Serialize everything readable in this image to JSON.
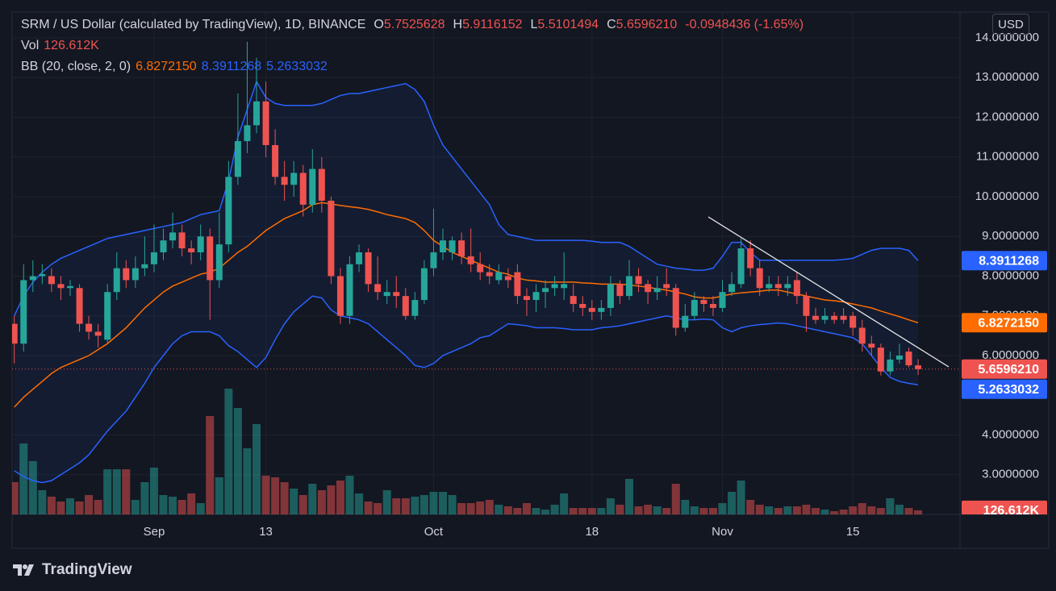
{
  "chart_data": {
    "type": "candlestick",
    "title": "SRM / US Dollar (calculated by TradingView), 1D, BINANCE",
    "currency": "USD",
    "brand": "TradingView",
    "keys": {
      "open": "O",
      "high": "H",
      "low": "L",
      "close": "C"
    },
    "last_labels": {
      "open": "5.7525628",
      "high": "5.9116152",
      "low": "5.5101494",
      "close": "5.6596210"
    },
    "change": -0.0948436,
    "change_label": "-0.0948436 (-1.65%)",
    "up_color": "#26a69a",
    "down_color": "#ef5350",
    "grid": true,
    "ylim": [
      2,
      14.65
    ],
    "yticks": [
      {
        "value": 3,
        "label": "3.0000000"
      },
      {
        "value": 4,
        "label": "4.0000000"
      },
      {
        "value": 6,
        "label": "6.0000000"
      },
      {
        "value": 7,
        "label": "7.0000000"
      },
      {
        "value": 8,
        "label": "8.0000000"
      },
      {
        "value": 9,
        "label": "9.0000000"
      },
      {
        "value": 10,
        "label": "10.0000000"
      },
      {
        "value": 11,
        "label": "11.0000000"
      },
      {
        "value": 12,
        "label": "12.0000000"
      },
      {
        "value": 13,
        "label": "13.0000000"
      },
      {
        "value": 14,
        "label": "14.0000000"
      }
    ],
    "categories": [
      null,
      null,
      null,
      null,
      null,
      null,
      null,
      null,
      null,
      null,
      null,
      null,
      null,
      null,
      null,
      "Sep",
      null,
      null,
      null,
      null,
      null,
      null,
      null,
      null,
      null,
      null,
      null,
      "13",
      null,
      null,
      null,
      null,
      null,
      null,
      null,
      null,
      null,
      null,
      null,
      null,
      null,
      null,
      null,
      null,
      null,
      "Oct",
      null,
      null,
      null,
      null,
      null,
      null,
      null,
      null,
      null,
      null,
      null,
      null,
      null,
      null,
      null,
      null,
      "18",
      null,
      null,
      null,
      null,
      null,
      null,
      null,
      null,
      null,
      null,
      null,
      null,
      null,
      "Nov",
      null,
      null,
      null,
      null,
      null,
      null,
      null,
      null,
      null,
      null,
      null,
      null,
      null,
      "15",
      null,
      null,
      null,
      null,
      null,
      null,
      null
    ],
    "open": [
      6.8,
      6.3,
      7.9,
      8.0,
      8.0,
      7.8,
      7.7,
      7.7,
      6.8,
      6.6,
      6.4,
      7.6,
      8.2,
      7.9,
      8.2,
      8.3,
      8.6,
      8.9,
      9.1,
      8.7,
      8.6,
      9.0,
      7.9,
      8.8,
      10.5,
      11.4,
      11.8,
      12.4,
      11.3,
      10.5,
      10.3,
      10.6,
      9.8,
      10.7,
      9.9,
      8.0,
      7.0,
      8.3,
      8.6,
      7.8,
      7.5,
      7.6,
      7.5,
      7.0,
      7.4,
      8.2,
      8.6,
      8.6,
      8.9,
      8.5,
      8.3,
      8.1,
      7.9,
      8.0,
      8.1,
      7.5,
      7.4,
      7.6,
      7.7,
      7.7,
      7.5,
      7.3,
      7.2,
      7.1,
      7.2,
      7.8,
      7.5,
      8.0,
      7.8,
      7.6,
      7.8,
      7.7,
      6.7,
      7.0,
      7.4,
      7.3,
      7.2,
      7.6,
      7.8,
      8.7,
      8.2,
      7.7,
      7.8,
      7.7,
      7.9,
      7.5,
      7.0,
      6.9,
      7.0,
      7.0,
      7.0,
      6.7,
      6.3,
      6.2,
      5.6,
      5.9,
      6.1,
      5.7525628
    ],
    "high": [
      7.0,
      8.3,
      8.4,
      8.3,
      8.2,
      8.0,
      7.9,
      7.8,
      7.0,
      6.8,
      7.8,
      8.6,
      8.4,
      8.5,
      9.0,
      9.3,
      9.2,
      9.6,
      9.3,
      8.9,
      9.3,
      9.2,
      9.6,
      10.9,
      12.6,
      13.9,
      13.5,
      12.9,
      11.7,
      10.9,
      10.9,
      10.8,
      11.2,
      11.0,
      10.0,
      8.2,
      8.5,
      8.8,
      8.7,
      8.5,
      7.9,
      8.0,
      7.7,
      7.6,
      8.4,
      9.7,
      9.2,
      9.0,
      9.1,
      9.2,
      8.6,
      8.3,
      8.3,
      8.2,
      8.3,
      7.7,
      7.8,
      7.9,
      8.0,
      8.6,
      7.8,
      7.5,
      7.4,
      7.4,
      8.0,
      7.9,
      8.4,
      8.2,
      7.9,
      8.0,
      8.2,
      7.8,
      7.3,
      7.6,
      7.5,
      7.5,
      7.9,
      8.1,
      8.95,
      8.9,
      8.4,
      8.0,
      8.0,
      8.0,
      8.1,
      7.6,
      7.2,
      7.2,
      7.1,
      7.2,
      7.1,
      6.9,
      6.5,
      6.3,
      6.1,
      6.3,
      6.2,
      5.9116152
    ],
    "low": [
      5.8,
      6.1,
      7.6,
      7.8,
      7.6,
      7.4,
      7.5,
      6.6,
      6.4,
      6.2,
      6.3,
      7.4,
      7.7,
      7.7,
      8.0,
      8.1,
      8.4,
      8.7,
      8.5,
      8.3,
      8.4,
      6.9,
      7.7,
      8.6,
      10.3,
      11.1,
      11.6,
      11.0,
      10.3,
      9.9,
      10.0,
      9.5,
      9.6,
      9.6,
      7.8,
      6.8,
      6.8,
      8.1,
      7.6,
      7.4,
      7.3,
      7.2,
      6.9,
      6.9,
      7.3,
      8.0,
      8.4,
      8.4,
      8.3,
      8.1,
      7.9,
      7.8,
      7.8,
      7.7,
      7.3,
      7.0,
      7.1,
      7.2,
      7.5,
      7.4,
      7.1,
      7.0,
      6.9,
      6.9,
      7.0,
      7.3,
      7.4,
      7.6,
      7.3,
      7.4,
      7.5,
      6.5,
      6.6,
      6.9,
      7.1,
      7.0,
      7.1,
      7.5,
      7.7,
      8.0,
      7.5,
      7.6,
      7.5,
      7.5,
      7.3,
      6.6,
      6.8,
      6.8,
      6.8,
      6.8,
      6.5,
      6.1,
      6.0,
      5.5,
      5.5,
      5.8,
      5.7,
      5.5101494
    ],
    "close": [
      6.3,
      7.9,
      8.0,
      8.05,
      7.8,
      7.7,
      7.75,
      6.8,
      6.6,
      6.5,
      7.6,
      8.2,
      7.9,
      8.2,
      8.3,
      8.6,
      8.9,
      9.1,
      8.7,
      8.6,
      9.0,
      7.9,
      8.8,
      10.5,
      11.4,
      11.8,
      12.4,
      11.3,
      10.5,
      10.3,
      10.6,
      9.8,
      10.7,
      9.9,
      8.0,
      7.0,
      8.3,
      8.6,
      7.8,
      7.6,
      7.6,
      7.5,
      7.0,
      7.4,
      8.2,
      8.6,
      8.9,
      8.9,
      8.5,
      8.3,
      8.1,
      8.0,
      8.1,
      7.9,
      7.5,
      7.4,
      7.6,
      7.7,
      7.8,
      7.8,
      7.3,
      7.2,
      7.1,
      7.2,
      7.8,
      7.5,
      8.0,
      7.8,
      7.6,
      7.7,
      7.7,
      6.7,
      7.0,
      7.4,
      7.3,
      7.2,
      7.6,
      7.8,
      8.7,
      8.2,
      7.7,
      7.8,
      7.7,
      7.8,
      7.5,
      7.0,
      6.9,
      7.0,
      6.9,
      6.9,
      6.7,
      6.3,
      6.2,
      5.6,
      5.9,
      6.0,
      5.7544646,
      5.659621
    ],
    "volume": {
      "name": "Vol",
      "last_label": "126.612K",
      "up_color": "rgba(38,166,154,0.5)",
      "down_color": "rgba(239,83,80,0.5)",
      "label_color": "#ef5350",
      "vlim": [
        0,
        4000000
      ],
      "values": [
        1000000,
        2200000,
        1650000,
        750000,
        550000,
        400000,
        500000,
        400000,
        600000,
        450000,
        1400000,
        1400000,
        1400000,
        450000,
        1000000,
        1450000,
        600000,
        550000,
        450000,
        650000,
        350000,
        3050000,
        1150000,
        3900000,
        3300000,
        2050000,
        2800000,
        1200000,
        1150000,
        1000000,
        800000,
        600000,
        950000,
        750000,
        900000,
        1050000,
        1200000,
        650000,
        400000,
        350000,
        750000,
        500000,
        500000,
        550000,
        600000,
        700000,
        700000,
        600000,
        350000,
        350000,
        400000,
        450000,
        300000,
        250000,
        200000,
        350000,
        200000,
        150000,
        300000,
        650000,
        200000,
        200000,
        200000,
        200000,
        500000,
        300000,
        1100000,
        250000,
        300000,
        250000,
        200000,
        950000,
        450000,
        250000,
        200000,
        200000,
        350000,
        700000,
        1050000,
        450000,
        300000,
        250000,
        200000,
        250000,
        250000,
        300000,
        200000,
        150000,
        100000,
        150000,
        250000,
        350000,
        250000,
        200000,
        500000,
        300000,
        200000,
        126612
      ]
    },
    "bb": {
      "name": "BB (20, close, 2, 0)",
      "band_color": "#2962ff",
      "basis_color": "#ff6d00",
      "fill": "rgba(41,98,255,0.07)",
      "labels": {
        "basis": "6.8272150",
        "upper": "8.3911268",
        "lower": "5.2633032"
      },
      "upper": [
        7.0,
        7.5,
        7.85,
        8.1,
        8.3,
        8.45,
        8.55,
        8.65,
        8.75,
        8.85,
        8.95,
        9.0,
        9.05,
        9.1,
        9.15,
        9.2,
        9.25,
        9.3,
        9.35,
        9.45,
        9.55,
        9.6,
        9.65,
        10.4,
        11.5,
        12.2,
        12.9,
        12.5,
        12.35,
        12.3,
        12.3,
        12.3,
        12.3,
        12.35,
        12.45,
        12.55,
        12.6,
        12.6,
        12.65,
        12.7,
        12.75,
        12.8,
        12.85,
        12.7,
        12.4,
        11.8,
        11.3,
        11.0,
        10.7,
        10.4,
        10.1,
        9.8,
        9.3,
        9.05,
        9.0,
        8.95,
        8.9,
        8.9,
        8.9,
        8.9,
        8.9,
        8.9,
        8.88,
        8.85,
        8.85,
        8.85,
        8.75,
        8.6,
        8.45,
        8.3,
        8.25,
        8.2,
        8.18,
        8.15,
        8.15,
        8.2,
        8.5,
        8.85,
        8.85,
        8.6,
        8.4,
        8.4,
        8.4,
        8.4,
        8.4,
        8.4,
        8.4,
        8.4,
        8.4,
        8.42,
        8.45,
        8.55,
        8.65,
        8.7,
        8.7,
        8.7,
        8.65,
        8.3911268
      ],
      "basis": [
        4.7,
        4.95,
        5.15,
        5.35,
        5.55,
        5.7,
        5.8,
        5.9,
        6.0,
        6.15,
        6.3,
        6.5,
        6.7,
        6.95,
        7.2,
        7.4,
        7.6,
        7.75,
        7.85,
        7.95,
        8.05,
        8.1,
        8.2,
        8.4,
        8.6,
        8.75,
        8.95,
        9.15,
        9.3,
        9.45,
        9.55,
        9.65,
        9.8,
        9.85,
        9.82,
        9.78,
        9.75,
        9.72,
        9.68,
        9.62,
        9.55,
        9.5,
        9.45,
        9.35,
        9.15,
        8.9,
        8.75,
        8.6,
        8.5,
        8.4,
        8.3,
        8.2,
        8.1,
        8.05,
        7.95,
        7.9,
        7.88,
        7.85,
        7.85,
        7.85,
        7.85,
        7.83,
        7.82,
        7.8,
        7.8,
        7.8,
        7.78,
        7.75,
        7.72,
        7.68,
        7.65,
        7.6,
        7.55,
        7.48,
        7.45,
        7.45,
        7.5,
        7.55,
        7.58,
        7.6,
        7.62,
        7.65,
        7.65,
        7.6,
        7.55,
        7.5,
        7.45,
        7.4,
        7.38,
        7.35,
        7.3,
        7.25,
        7.2,
        7.12,
        7.05,
        6.98,
        6.9,
        6.827215
      ],
      "lower": [
        3.1,
        2.95,
        2.85,
        2.8,
        2.85,
        3.0,
        3.15,
        3.3,
        3.5,
        3.8,
        4.1,
        4.35,
        4.6,
        4.95,
        5.3,
        5.7,
        6.0,
        6.3,
        6.5,
        6.6,
        6.6,
        6.6,
        6.5,
        6.25,
        6.1,
        5.9,
        5.7,
        5.95,
        6.4,
        6.8,
        7.1,
        7.3,
        7.5,
        7.45,
        7.15,
        7.0,
        6.95,
        6.9,
        6.8,
        6.6,
        6.4,
        6.2,
        6.0,
        5.75,
        5.7,
        5.8,
        6.0,
        6.1,
        6.2,
        6.3,
        6.45,
        6.5,
        6.65,
        6.8,
        6.78,
        6.75,
        6.7,
        6.7,
        6.7,
        6.68,
        6.65,
        6.65,
        6.65,
        6.7,
        6.72,
        6.75,
        6.8,
        6.85,
        6.9,
        6.95,
        7.0,
        6.95,
        6.9,
        6.9,
        6.92,
        6.9,
        6.7,
        6.6,
        6.7,
        6.75,
        6.78,
        6.8,
        6.82,
        6.8,
        6.75,
        6.7,
        6.65,
        6.6,
        6.55,
        6.5,
        6.45,
        6.3,
        6.0,
        5.7,
        5.45,
        5.35,
        5.3,
        5.2633032
      ]
    }
  }
}
